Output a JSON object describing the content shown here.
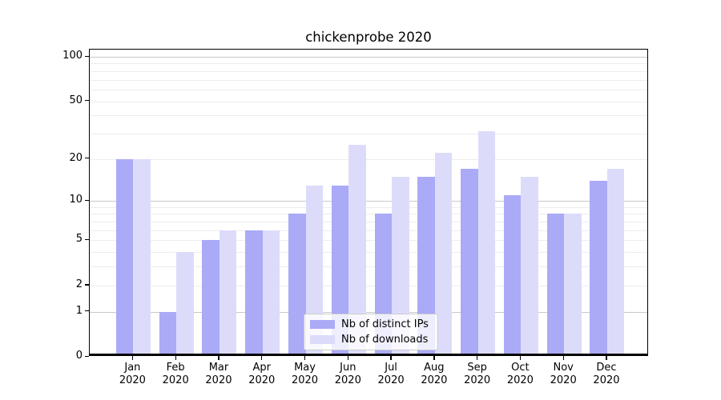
{
  "chart_data": {
    "type": "bar",
    "title": "chickenprobe 2020",
    "categories": [
      "Jan",
      "Feb",
      "Mar",
      "Apr",
      "May",
      "Jun",
      "Jul",
      "Aug",
      "Sep",
      "Oct",
      "Nov",
      "Dec"
    ],
    "year_label": "2020",
    "series": [
      {
        "name": "Nb of distinct IPs",
        "color": "#aaaaf7",
        "values": [
          20,
          1,
          5,
          6,
          8,
          13,
          8,
          15,
          17,
          11,
          8,
          14
        ]
      },
      {
        "name": "Nb of downloads",
        "color": "#dcdcfa",
        "values": [
          20,
          4,
          6,
          6,
          13,
          25,
          15,
          22,
          31,
          15,
          8,
          17
        ]
      }
    ],
    "xlabel": "",
    "ylabel": "",
    "yscale": "log1p",
    "ylim": [
      0,
      110
    ],
    "yticks": [
      0,
      1,
      2,
      5,
      10,
      20,
      50,
      100
    ],
    "ytick_labels": [
      "0",
      "1",
      "2",
      "5",
      "10",
      "20",
      "50",
      "100"
    ],
    "major_gridlines": [
      1,
      10,
      100
    ],
    "minor_gridlines": [
      2,
      3,
      4,
      5,
      6,
      7,
      8,
      9,
      20,
      30,
      40,
      50,
      60,
      70,
      80,
      90
    ],
    "grid": "horizontal",
    "legend_position": "inside lower-center",
    "colors": {
      "major_grid": "#c9c9c9",
      "minor_grid": "#ededed",
      "spine": "#000000",
      "text": "#000000",
      "background": "#ffffff"
    }
  }
}
